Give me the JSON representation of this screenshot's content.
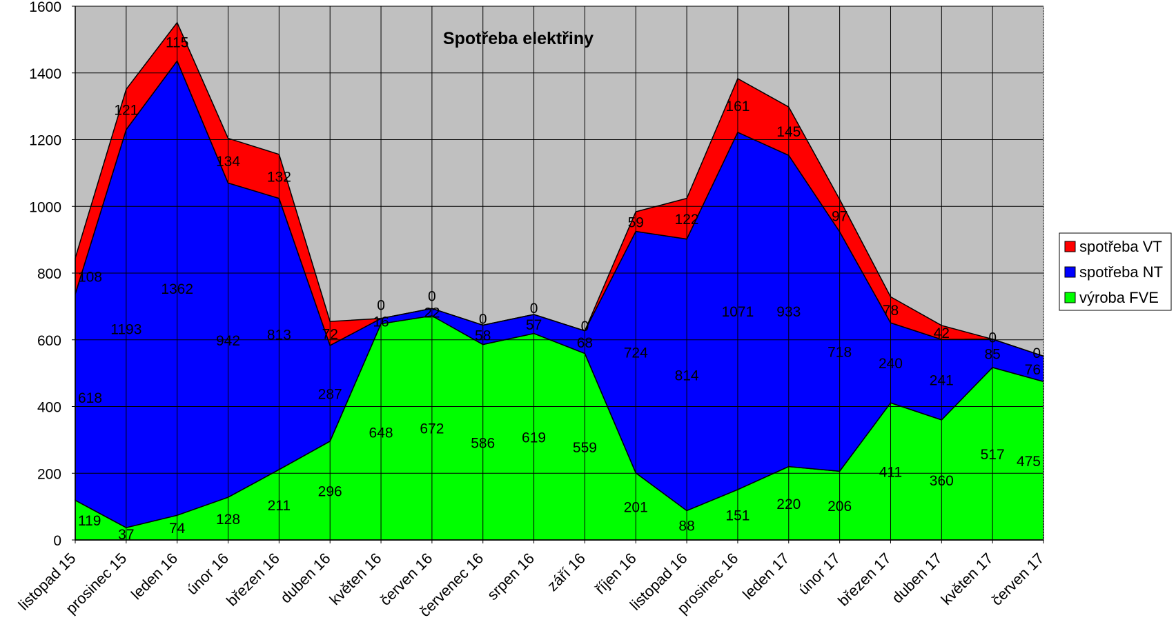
{
  "chart_data": {
    "type": "area",
    "stacked": true,
    "title": "Spotřeba elektřiny",
    "xlabel": "",
    "ylabel": "",
    "ylim": [
      0,
      1600
    ],
    "yticks": [
      0,
      200,
      400,
      600,
      800,
      1000,
      1200,
      1400,
      1600
    ],
    "grid": true,
    "legend_position": "right",
    "categories": [
      "listopad 15",
      "prosinec 15",
      "leden 16",
      "únor 16",
      "březen 16",
      "duben 16",
      "květen 16",
      "červen 16",
      "červenec 16",
      "srpen 16",
      "září 16",
      "říjen 16",
      "listopad 16",
      "prosinec 16",
      "leden 17",
      "únor 17",
      "březen 17",
      "duben 17",
      "květen 17",
      "červen 17"
    ],
    "series": [
      {
        "name": "výroba FVE",
        "color": "#00ff00",
        "values": [
          119,
          37,
          74,
          128,
          211,
          296,
          648,
          672,
          586,
          619,
          559,
          201,
          88,
          151,
          220,
          206,
          411,
          360,
          517,
          475
        ]
      },
      {
        "name": "spotřeba NT",
        "color": "#0000ff",
        "values": [
          618,
          1193,
          1362,
          942,
          813,
          287,
          16,
          22,
          58,
          57,
          68,
          724,
          814,
          1071,
          933,
          718,
          240,
          241,
          85,
          76
        ]
      },
      {
        "name": "spotřeba VT",
        "color": "#ff0000",
        "values": [
          108,
          121,
          115,
          134,
          132,
          72,
          0,
          0,
          0,
          0,
          0,
          59,
          122,
          161,
          145,
          97,
          78,
          42,
          0,
          0
        ]
      }
    ],
    "legend_order": [
      "spotřeba VT",
      "spotřeba NT",
      "výroba FVE"
    ]
  }
}
